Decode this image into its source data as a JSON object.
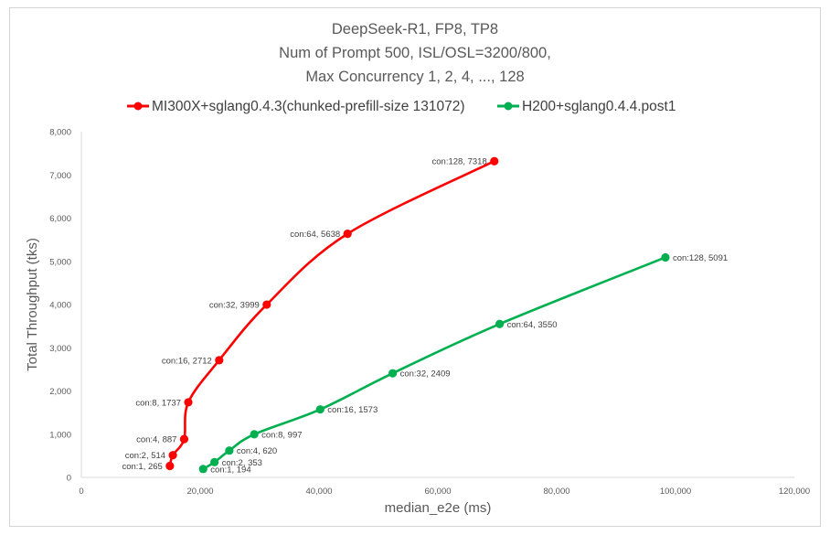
{
  "chart_data": {
    "type": "line",
    "title_lines": [
      "DeepSeek-R1, FP8, TP8",
      "Num of Prompt 500, ISL/OSL=3200/800,",
      "Max Concurrency 1, 2, 4, ..., 128"
    ],
    "xlabel": "median_e2e (ms)",
    "ylabel": "Total Throughput (tks)",
    "xlim": [
      0,
      120000
    ],
    "ylim": [
      0,
      8000
    ],
    "x_ticks": [
      "0",
      "20,000",
      "40,000",
      "60,000",
      "80,000",
      "100,000",
      "120,000"
    ],
    "y_ticks": [
      "0",
      "1,000",
      "2,000",
      "3,000",
      "4,000",
      "5,000",
      "6,000",
      "7,000",
      "8,000"
    ],
    "grid": false,
    "legend_position": "top",
    "series": [
      {
        "name": "MI300X+sglang0.4.3(chunked-prefill-size 131072)",
        "color": "#ff0000",
        "points": [
          {
            "x": 14900,
            "y": 265,
            "label": "con:1, 265"
          },
          {
            "x": 15400,
            "y": 514,
            "label": "con:2, 514"
          },
          {
            "x": 17300,
            "y": 887,
            "label": "con:4, 887"
          },
          {
            "x": 18000,
            "y": 1737,
            "label": "con:8, 1737"
          },
          {
            "x": 23200,
            "y": 2712,
            "label": "con:16, 2712"
          },
          {
            "x": 31200,
            "y": 3999,
            "label": "con:32, 3999"
          },
          {
            "x": 44800,
            "y": 5638,
            "label": "con:64, 5638"
          },
          {
            "x": 69500,
            "y": 7318,
            "label": "con:128, 7318"
          }
        ]
      },
      {
        "name": "H200+sglang0.4.4.post1",
        "color": "#00b050",
        "points": [
          {
            "x": 20500,
            "y": 194,
            "label": "con:1, 194"
          },
          {
            "x": 22400,
            "y": 353,
            "label": "con:2, 353"
          },
          {
            "x": 24900,
            "y": 620,
            "label": "con:4, 620"
          },
          {
            "x": 29100,
            "y": 997,
            "label": "con:8, 997"
          },
          {
            "x": 40200,
            "y": 1573,
            "label": "con:16, 1573"
          },
          {
            "x": 52400,
            "y": 2409,
            "label": "con:32, 2409"
          },
          {
            "x": 70400,
            "y": 3550,
            "label": "con:64, 3550"
          },
          {
            "x": 98300,
            "y": 5091,
            "label": "con:128, 5091"
          }
        ]
      }
    ]
  }
}
